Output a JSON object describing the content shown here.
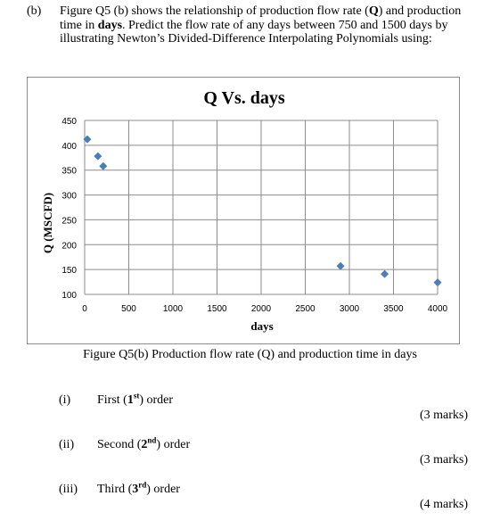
{
  "question": {
    "label": "(b)",
    "intro": {
      "p1": "Figure Q5 (b) shows the relationship of production flow rate (",
      "b1": "Q",
      "p2": ") and production time in ",
      "b2": "days",
      "p3": ". Predict the flow rate of any days between 750 and 1500 days by illustrating Newton’s Divided-Difference Interpolating Polynomials using:"
    }
  },
  "chart_data": {
    "type": "scatter",
    "title": "Q Vs. days",
    "xlabel": "days",
    "ylabel": "Q (MSCFD)",
    "xlim": [
      0,
      4000
    ],
    "ylim": [
      100,
      450
    ],
    "xticks": [
      0,
      500,
      1000,
      1500,
      2000,
      2500,
      3000,
      3500,
      4000
    ],
    "yticks": [
      100,
      150,
      200,
      250,
      300,
      350,
      400,
      450
    ],
    "grid": true,
    "marker_color": "#4a7ebb",
    "points": [
      {
        "x": 30,
        "y": 412
      },
      {
        "x": 150,
        "y": 378
      },
      {
        "x": 210,
        "y": 358
      },
      {
        "x": 2900,
        "y": 157
      },
      {
        "x": 3400,
        "y": 141
      },
      {
        "x": 4000,
        "y": 124
      }
    ]
  },
  "figure_caption": "Figure Q5(b) Production flow rate (Q) and production time in days",
  "parts": [
    {
      "num": "(i)",
      "text_a": "First (",
      "ord": "1",
      "sup": "st",
      "text_b": ") order",
      "marks": "(3 marks)"
    },
    {
      "num": "(ii)",
      "text_a": "Second (",
      "ord": "2",
      "sup": "nd",
      "text_b": ") order",
      "marks": "(3 marks)"
    },
    {
      "num": "(iii)",
      "text_a": "Third (",
      "ord": "3",
      "sup": "rd",
      "text_b": ") order",
      "marks": "(4 marks)"
    }
  ]
}
